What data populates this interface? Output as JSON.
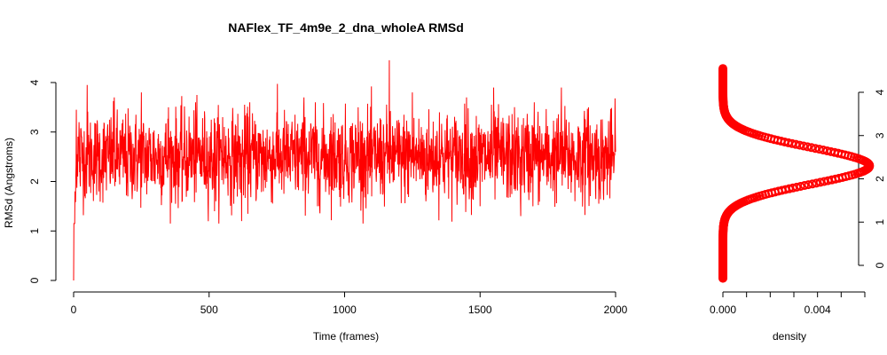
{
  "chart_data": [
    {
      "type": "line",
      "title": "NAFlex_TF_4m9e_2_dna_wholeA RMSd",
      "xlabel": "Time (frames)",
      "ylabel": "RMSd (Angstroms)",
      "xlim": [
        0,
        2000
      ],
      "ylim": [
        0,
        4
      ],
      "xticks": [
        0,
        500,
        1000,
        1500,
        2000
      ],
      "yticks": [
        0,
        1,
        2,
        3,
        4
      ],
      "grid": false,
      "series": [
        {
          "color": "#ff0000",
          "x": [
            0,
            5,
            10,
            15,
            20,
            25,
            30,
            40,
            50,
            100,
            150,
            200,
            250,
            300,
            350,
            400,
            450,
            500,
            520,
            550,
            600,
            620,
            650,
            700,
            750,
            800,
            850,
            900,
            950,
            1000,
            1050,
            1100,
            1150,
            1165,
            1200,
            1250,
            1300,
            1350,
            1400,
            1450,
            1500,
            1550,
            1600,
            1650,
            1700,
            1750,
            1800,
            1850,
            1900,
            1950,
            2000
          ],
          "y": [
            0.0,
            1.8,
            3.45,
            2.1,
            3.2,
            1.9,
            2.9,
            2.3,
            3.95,
            2.1,
            3.7,
            1.7,
            3.8,
            2.0,
            3.5,
            1.6,
            3.6,
            2.2,
            1.4,
            3.3,
            2.4,
            1.2,
            3.6,
            1.8,
            3.4,
            2.0,
            3.7,
            1.5,
            3.3,
            2.2,
            3.5,
            1.7,
            2.6,
            4.45,
            2.1,
            3.8,
            1.6,
            3.4,
            2.2,
            3.7,
            1.5,
            3.9,
            2.0,
            1.3,
            3.6,
            2.1,
            3.9,
            1.6,
            3.5,
            2.0,
            2.6
          ],
          "noise_mean": 2.5,
          "noise_sd": 0.45
        }
      ]
    },
    {
      "type": "line",
      "title": "",
      "xlabel": "density",
      "ylabel": "",
      "xlim": [
        0,
        0.006
      ],
      "ylim": [
        0,
        4.2
      ],
      "xticks": [
        0.0,
        0.002,
        0.004
      ],
      "xtick_labels": [
        "0.000",
        "0.004"
      ],
      "yticks": [
        0,
        1,
        2,
        3,
        4
      ],
      "grid": false,
      "marker": "circle",
      "series": [
        {
          "color": "#ff0000",
          "density_peak": 0.0062,
          "density_mean": 2.3,
          "density_sd": 0.42,
          "y_range": [
            -0.3,
            4.55
          ]
        }
      ]
    }
  ]
}
